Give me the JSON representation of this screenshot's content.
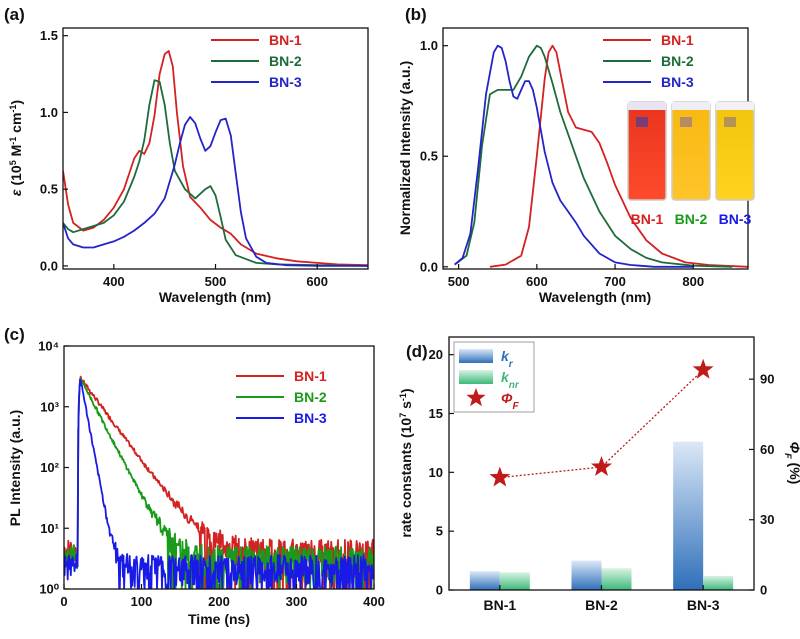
{
  "colors": {
    "BN-1": "#d42121",
    "BN-2": "#1e6b3c",
    "BN-3": "#2424c8",
    "bright_green": "#1a9a1a",
    "bright_blue": "#1a1ae6"
  },
  "chart_data": [
    {
      "panel": "(a)",
      "type": "line",
      "xlabel": "Wavelength (nm)",
      "ylabel": "ε (10⁵ M⁻¹ cm⁻¹)",
      "xlim": [
        350,
        650
      ],
      "ylim": [
        -0.02,
        1.55
      ],
      "xticks": [
        400,
        500,
        600
      ],
      "yticks": [
        0.0,
        0.5,
        1.0,
        1.5
      ],
      "xticklabels": [
        "400",
        "500",
        "600"
      ],
      "yticklabels": [
        "0.0",
        "0.5",
        "1.0",
        "1.5"
      ],
      "legend": "top-right",
      "series": [
        {
          "name": "BN-1",
          "color": "#d42121",
          "x": [
            350,
            355,
            360,
            370,
            380,
            390,
            400,
            410,
            420,
            425,
            430,
            435,
            440,
            445,
            450,
            454,
            458,
            462,
            468,
            475,
            485,
            495,
            505,
            515,
            525,
            540,
            560,
            580,
            600,
            620,
            650
          ],
          "y": [
            0.62,
            0.4,
            0.28,
            0.23,
            0.25,
            0.3,
            0.38,
            0.5,
            0.7,
            0.75,
            0.73,
            0.8,
            0.98,
            1.25,
            1.38,
            1.4,
            1.3,
            1.0,
            0.65,
            0.45,
            0.38,
            0.3,
            0.25,
            0.21,
            0.14,
            0.08,
            0.05,
            0.03,
            0.02,
            0.01,
            0.005
          ]
        },
        {
          "name": "BN-2",
          "color": "#1e6b3c",
          "x": [
            350,
            355,
            360,
            370,
            380,
            390,
            400,
            410,
            420,
            425,
            430,
            435,
            440,
            445,
            450,
            455,
            460,
            470,
            480,
            490,
            495,
            500,
            505,
            510,
            520,
            540,
            560,
            600,
            650
          ],
          "y": [
            0.28,
            0.24,
            0.22,
            0.24,
            0.26,
            0.28,
            0.33,
            0.42,
            0.58,
            0.68,
            0.82,
            1.05,
            1.21,
            1.2,
            1.05,
            0.8,
            0.62,
            0.5,
            0.44,
            0.5,
            0.52,
            0.46,
            0.32,
            0.17,
            0.07,
            0.02,
            0.01,
            0.005,
            0.0
          ]
        },
        {
          "name": "BN-3",
          "color": "#2424c8",
          "x": [
            350,
            355,
            360,
            370,
            380,
            390,
            400,
            410,
            420,
            430,
            440,
            450,
            460,
            465,
            470,
            475,
            480,
            485,
            490,
            495,
            500,
            505,
            510,
            515,
            520,
            525,
            530,
            540,
            550,
            570,
            600,
            650
          ],
          "y": [
            0.28,
            0.18,
            0.14,
            0.12,
            0.12,
            0.14,
            0.16,
            0.19,
            0.23,
            0.28,
            0.34,
            0.44,
            0.66,
            0.8,
            0.92,
            0.97,
            0.93,
            0.83,
            0.75,
            0.78,
            0.87,
            0.95,
            0.96,
            0.85,
            0.6,
            0.35,
            0.18,
            0.06,
            0.02,
            0.005,
            0.0,
            0.0
          ]
        }
      ]
    },
    {
      "panel": "(b)",
      "type": "line",
      "xlabel": "Wavelength (nm)",
      "ylabel": "Normalized Intensity (a.u.)",
      "xlim": [
        480,
        870
      ],
      "ylim": [
        -0.01,
        1.08
      ],
      "xticks": [
        500,
        600,
        700,
        800
      ],
      "yticks": [
        0.0,
        0.5,
        1.0
      ],
      "xticklabels": [
        "500",
        "600",
        "700",
        "800"
      ],
      "yticklabels": [
        "0.0",
        "0.5",
        "1.0"
      ],
      "legend": "top-right",
      "inset_labels": [
        "BN-1",
        "BN-2",
        "BN-3"
      ],
      "series": [
        {
          "name": "BN-1",
          "color": "#d42121",
          "x": [
            540,
            560,
            580,
            590,
            600,
            610,
            615,
            620,
            625,
            630,
            640,
            650,
            660,
            670,
            680,
            690,
            700,
            720,
            740,
            760,
            790,
            820,
            870
          ],
          "y": [
            0.0,
            0.01,
            0.05,
            0.18,
            0.5,
            0.85,
            0.97,
            1.0,
            0.97,
            0.88,
            0.7,
            0.63,
            0.62,
            0.61,
            0.56,
            0.47,
            0.37,
            0.22,
            0.12,
            0.06,
            0.02,
            0.008,
            0.0
          ]
        },
        {
          "name": "BN-2",
          "color": "#1e6b3c",
          "x": [
            495,
            510,
            520,
            530,
            540,
            550,
            560,
            570,
            580,
            590,
            600,
            605,
            610,
            620,
            630,
            640,
            650,
            660,
            680,
            700,
            720,
            740,
            760,
            800,
            850
          ],
          "y": [
            0.01,
            0.05,
            0.2,
            0.55,
            0.78,
            0.8,
            0.8,
            0.8,
            0.86,
            0.95,
            1.0,
            0.99,
            0.95,
            0.83,
            0.7,
            0.6,
            0.5,
            0.4,
            0.25,
            0.14,
            0.08,
            0.04,
            0.02,
            0.005,
            0.0
          ]
        },
        {
          "name": "BN-3",
          "color": "#2424c8",
          "x": [
            495,
            505,
            515,
            525,
            535,
            545,
            550,
            555,
            560,
            565,
            570,
            575,
            580,
            585,
            590,
            595,
            600,
            610,
            620,
            630,
            640,
            650,
            660,
            680,
            700,
            720,
            750,
            800
          ],
          "y": [
            0.01,
            0.04,
            0.15,
            0.45,
            0.78,
            0.97,
            1.0,
            0.99,
            0.93,
            0.84,
            0.77,
            0.76,
            0.8,
            0.84,
            0.84,
            0.8,
            0.72,
            0.52,
            0.38,
            0.3,
            0.25,
            0.2,
            0.14,
            0.06,
            0.02,
            0.008,
            0.0,
            0.0
          ]
        }
      ]
    },
    {
      "panel": "(c)",
      "type": "line",
      "xlabel": "Time (ns)",
      "ylabel": "PL Intensity (a.u.)",
      "xlim": [
        0,
        400
      ],
      "yscale": "log",
      "ylim": [
        1,
        10000
      ],
      "xticks": [
        0,
        100,
        200,
        300,
        400
      ],
      "yticks": [
        1,
        10,
        100,
        1000,
        10000
      ],
      "xticklabels": [
        "0",
        "100",
        "200",
        "300",
        "400"
      ],
      "yticklabels": [
        "10⁰",
        "10¹",
        "10²",
        "10³",
        "10⁴"
      ],
      "legend": "top-right",
      "series": [
        {
          "name": "BN-1",
          "color": "#d42121",
          "peak_time": 21,
          "peak": 3000,
          "lifetime": 25,
          "noise_floor": 4.5
        },
        {
          "name": "BN-2",
          "color": "#1a9a1a",
          "peak_time": 21,
          "peak": 3000,
          "lifetime": 17.5,
          "noise_floor": 3.5
        },
        {
          "name": "BN-3",
          "color": "#1a1ae6",
          "peak_time": 21,
          "peak": 3000,
          "lifetime": 6.3,
          "noise_floor": 2.5
        }
      ]
    },
    {
      "panel": "(d)",
      "type": "bar",
      "categories": [
        "BN-1",
        "BN-2",
        "BN-3"
      ],
      "ylabel": "rate constants (10⁷ s⁻¹)",
      "ylim": [
        0,
        21.5
      ],
      "yticks": [
        0,
        5,
        10,
        15,
        20
      ],
      "y2label": "ΦF (%)",
      "y2lim": [
        0,
        108
      ],
      "y2ticks": [
        0,
        30,
        60,
        90
      ],
      "legend": "top-left",
      "series": [
        {
          "name": "kr",
          "label_main": "k",
          "label_sub": "r",
          "axis": "left",
          "color": "#2f6fba",
          "values": [
            1.6,
            2.5,
            12.6
          ]
        },
        {
          "name": "knr",
          "label_main": "k",
          "label_sub": "nr",
          "axis": "left",
          "color": "#3cb878",
          "values": [
            1.5,
            1.85,
            1.2
          ]
        },
        {
          "name": "ΦF",
          "label_main": "Φ",
          "label_sub": "F",
          "axis": "right",
          "color": "#c01a1a",
          "values": [
            48,
            52.5,
            94
          ],
          "marker": "star",
          "line": "dotted"
        }
      ]
    }
  ]
}
